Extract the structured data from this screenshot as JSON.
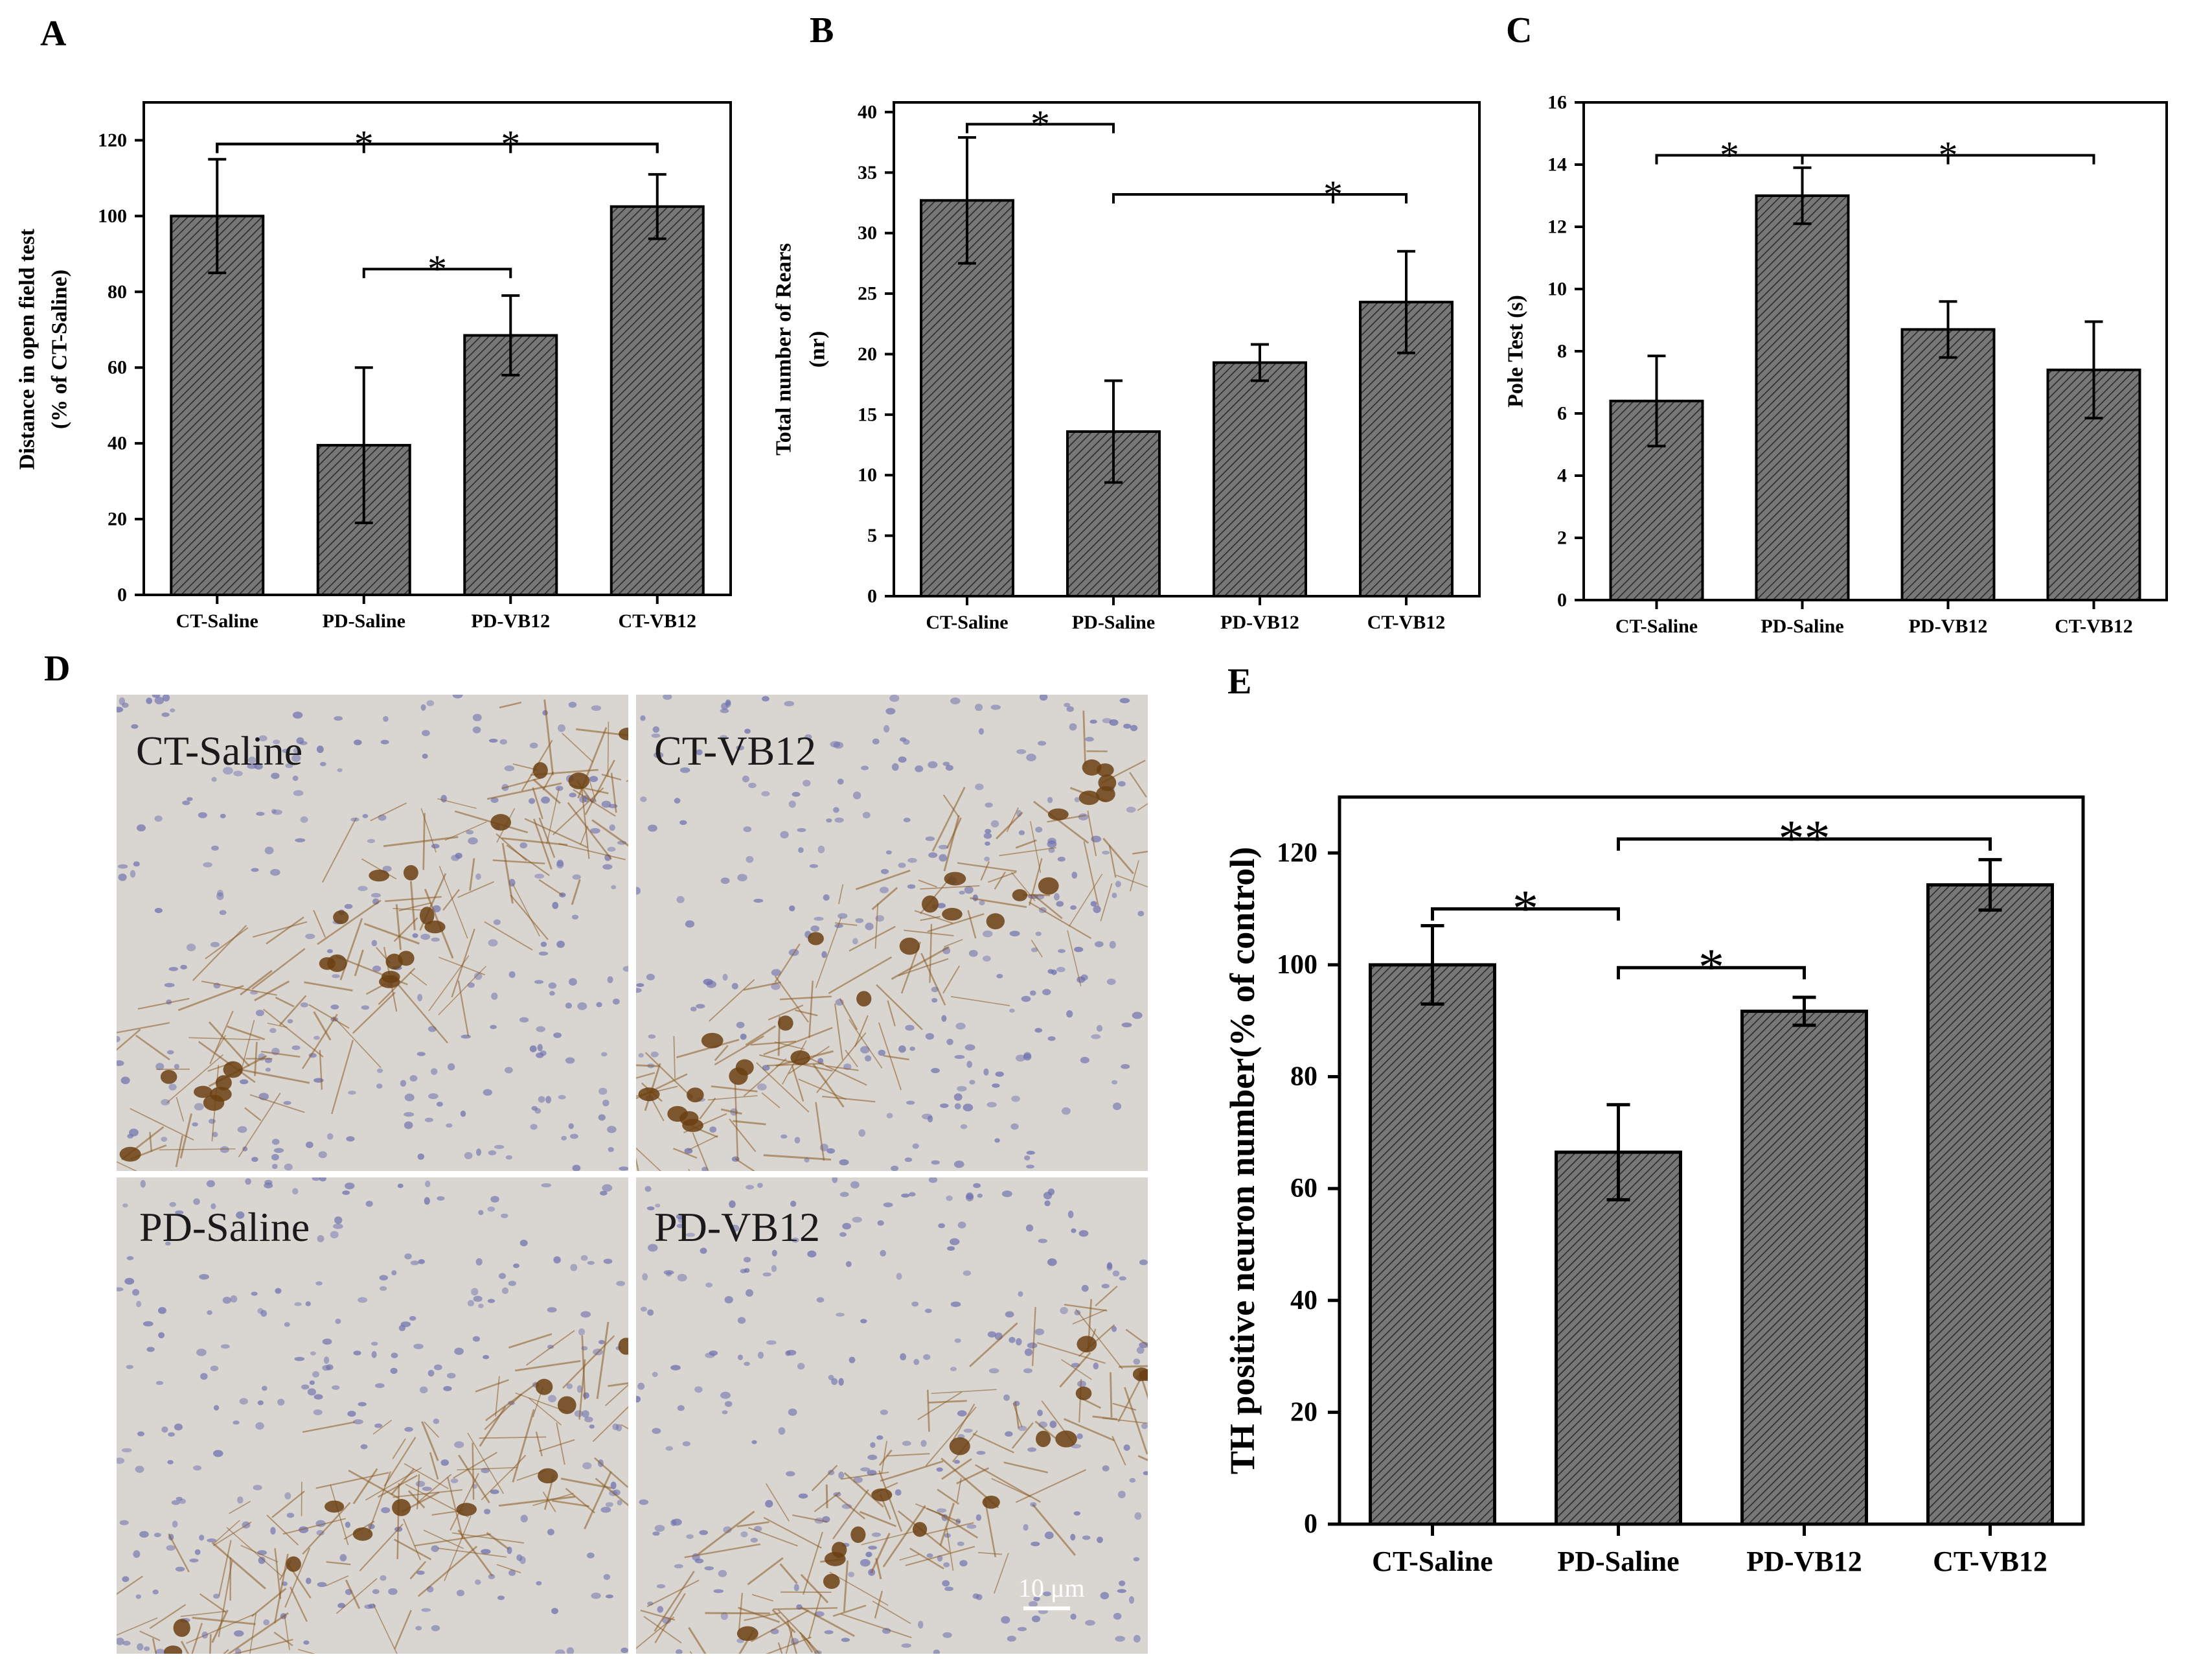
{
  "panels": {
    "A": "A",
    "B": "B",
    "C": "C",
    "D": "D",
    "E": "E"
  },
  "colors": {
    "bar_fill": "#777777",
    "bar_hatch": "#2b2b2b",
    "tissue": "#d9d5d0",
    "stain": "#8a5a22",
    "nuclei": "#6d6fae"
  },
  "chart_data": [
    {
      "id": "A",
      "type": "bar",
      "categories": [
        "CT-Saline",
        "PD-Saline",
        "PD-VB12",
        "CT-VB12"
      ],
      "values": [
        100,
        39.5,
        68.5,
        102.5
      ],
      "errors": [
        15,
        20.5,
        10.5,
        8.5
      ],
      "ylabel_lines": [
        "Distance in open field test",
        "(% of CT-Saline)"
      ],
      "xlabel": "",
      "ylim": [
        0,
        130
      ],
      "yticks": [
        0,
        20,
        40,
        60,
        80,
        100,
        120
      ],
      "significance": [
        {
          "from": 0,
          "to": 3,
          "mark_at": 1,
          "y": 119,
          "label": "*"
        },
        {
          "from": 0,
          "to": 3,
          "mark_at": 2,
          "y": 119,
          "label": "*"
        },
        {
          "from": 1,
          "to": 2,
          "y": 86,
          "label": "*"
        }
      ]
    },
    {
      "id": "B",
      "type": "bar",
      "categories": [
        "CT-Saline",
        "PD-Saline",
        "PD-VB12",
        "CT-VB12"
      ],
      "values": [
        32.7,
        13.6,
        19.3,
        24.3
      ],
      "errors": [
        5.2,
        4.2,
        1.5,
        4.2
      ],
      "ylabel_lines": [
        "Total number of Rears",
        "(nr)"
      ],
      "xlabel": "",
      "ylim": [
        0,
        40.8
      ],
      "yticks": [
        0,
        5,
        10,
        15,
        20,
        25,
        30,
        35,
        40
      ],
      "significance": [
        {
          "from": 0,
          "to": 1,
          "y": 39,
          "label": "*"
        },
        {
          "from": 1,
          "to": 3,
          "mark_at": 2.5,
          "y": 33.2,
          "label": "*"
        }
      ]
    },
    {
      "id": "C",
      "type": "bar",
      "categories": [
        "CT-Saline",
        "PD-Saline",
        "PD-VB12",
        "CT-VB12"
      ],
      "values": [
        6.4,
        13,
        8.7,
        7.4
      ],
      "errors": [
        1.45,
        0.9,
        0.9,
        1.55
      ],
      "ylabel_lines": [
        "Pole Test (s)"
      ],
      "xlabel": "",
      "ylim": [
        0,
        16
      ],
      "yticks": [
        0,
        2,
        4,
        6,
        8,
        10,
        12,
        14,
        16
      ],
      "significance": [
        {
          "from": 0,
          "to": 1,
          "y": 14.3,
          "label": "*"
        },
        {
          "from": 1,
          "to": 3,
          "mark_at": 2,
          "y": 14.3,
          "label": "*"
        }
      ]
    },
    {
      "id": "E",
      "type": "bar",
      "categories": [
        "CT-Saline",
        "PD-Saline",
        "PD-VB12",
        "CT-VB12"
      ],
      "values": [
        100,
        66.5,
        91.7,
        114.3
      ],
      "errors": [
        7,
        8.5,
        2.5,
        4.5
      ],
      "ylabel_lines": [
        "TH positive neuron number(% of control)"
      ],
      "xlabel": "",
      "ylim": [
        0,
        130
      ],
      "yticks": [
        0,
        20,
        40,
        60,
        80,
        100,
        120
      ],
      "significance": [
        {
          "from": 0,
          "to": 1,
          "y": 110,
          "label": "*"
        },
        {
          "from": 1,
          "to": 2,
          "y": 99.5,
          "label": "*"
        },
        {
          "from": 1,
          "to": 3,
          "y": 122.5,
          "label": "**"
        }
      ]
    }
  ],
  "micrographs": {
    "tiles": [
      {
        "id": "ct-saline",
        "label": "CT-Saline"
      },
      {
        "id": "ct-vb12",
        "label": "CT-VB12"
      },
      {
        "id": "pd-saline",
        "label": "PD-Saline"
      },
      {
        "id": "pd-vb12",
        "label": "PD-VB12"
      }
    ],
    "scale_bar": "10 μm"
  }
}
